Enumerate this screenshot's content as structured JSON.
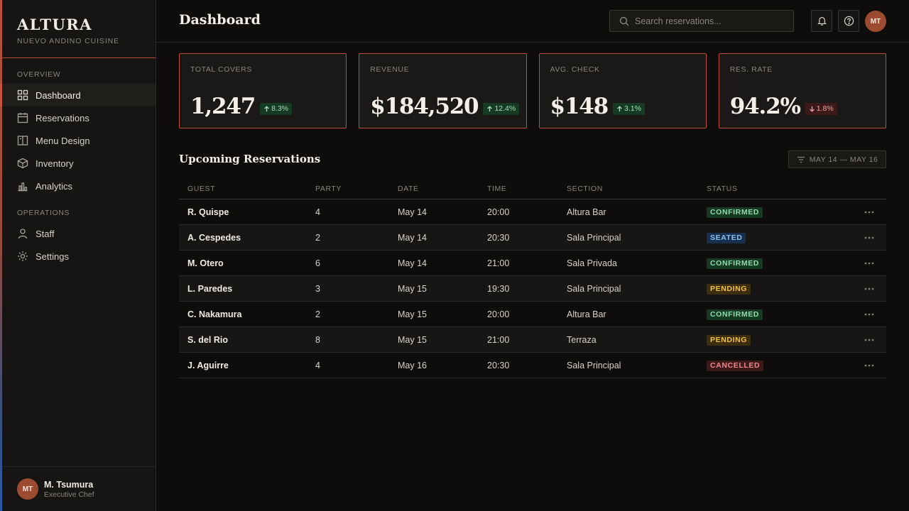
{
  "brand": {
    "name": "ALTURA",
    "tagline": "NUEVO ANDINO CUISINE"
  },
  "sidebar": {
    "sections": [
      {
        "label": "OVERVIEW",
        "items": [
          {
            "label": "Dashboard",
            "icon": "grid-icon",
            "active": true
          },
          {
            "label": "Reservations",
            "icon": "calendar-icon"
          },
          {
            "label": "Menu Design",
            "icon": "book-icon"
          },
          {
            "label": "Inventory",
            "icon": "box-icon"
          },
          {
            "label": "Analytics",
            "icon": "bar-chart-icon"
          }
        ]
      },
      {
        "label": "OPERATIONS",
        "items": [
          {
            "label": "Staff",
            "icon": "person-icon"
          },
          {
            "label": "Settings",
            "icon": "gear-icon"
          }
        ]
      }
    ]
  },
  "user": {
    "initials": "MT",
    "name": "M. Tsumura",
    "role": "Executive Chef"
  },
  "header": {
    "title": "Dashboard",
    "search_placeholder": "Search reservations...",
    "avatar_initials": "MT"
  },
  "stats": [
    {
      "label": "TOTAL COVERS",
      "value": "1,247",
      "delta": "8.3%",
      "direction": "up"
    },
    {
      "label": "REVENUE",
      "value": "$184,520",
      "delta": "12.4%",
      "direction": "up"
    },
    {
      "label": "AVG. CHECK",
      "value": "$148",
      "delta": "3.1%",
      "direction": "up"
    },
    {
      "label": "RES. RATE",
      "value": "94.2%",
      "delta": "1.8%",
      "direction": "down"
    }
  ],
  "reservations": {
    "title": "Upcoming Reservations",
    "filter_label": "MAY 14 — MAY 16",
    "columns": [
      "GUEST",
      "PARTY",
      "DATE",
      "TIME",
      "SECTION",
      "STATUS"
    ],
    "rows": [
      {
        "guest": "R. Quispe",
        "party": "4",
        "date": "May 14",
        "time": "20:00",
        "section": "Altura Bar",
        "status": "CONFIRMED"
      },
      {
        "guest": "A. Cespedes",
        "party": "2",
        "date": "May 14",
        "time": "20:30",
        "section": "Sala Principal",
        "status": "SEATED"
      },
      {
        "guest": "M. Otero",
        "party": "6",
        "date": "May 14",
        "time": "21:00",
        "section": "Sala Privada",
        "status": "CONFIRMED"
      },
      {
        "guest": "L. Paredes",
        "party": "3",
        "date": "May 15",
        "time": "19:30",
        "section": "Sala Principal",
        "status": "PENDING"
      },
      {
        "guest": "C. Nakamura",
        "party": "2",
        "date": "May 15",
        "time": "20:00",
        "section": "Altura Bar",
        "status": "CONFIRMED"
      },
      {
        "guest": "S. del Rio",
        "party": "8",
        "date": "May 15",
        "time": "21:00",
        "section": "Terraza",
        "status": "PENDING"
      },
      {
        "guest": "J. Aguirre",
        "party": "4",
        "date": "May 16",
        "time": "20:30",
        "section": "Sala Principal",
        "status": "CANCELLED"
      }
    ]
  },
  "colors": {
    "accent": "#c8553d",
    "background": "#0e0d0c",
    "surface": "#161513"
  }
}
